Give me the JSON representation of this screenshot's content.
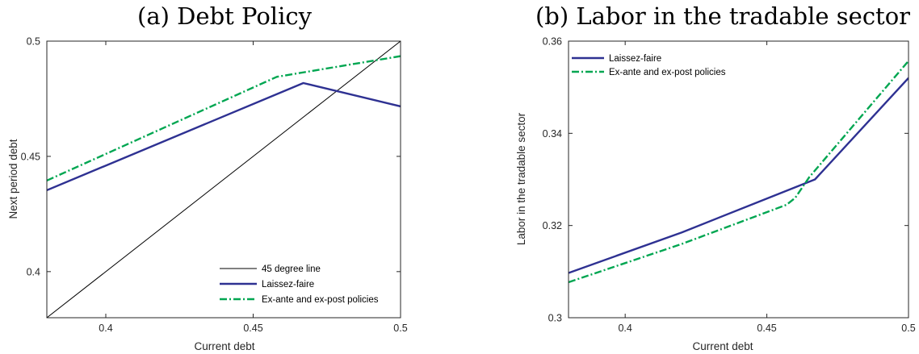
{
  "chart_data": [
    {
      "type": "line",
      "title": "(a) Debt Policy",
      "xlabel": "Current debt",
      "ylabel": "Next period debt",
      "xlim": [
        0.38,
        0.5
      ],
      "ylim": [
        0.38,
        0.5
      ],
      "xticks": [
        0.4,
        0.45,
        0.5
      ],
      "yticks": [
        0.4,
        0.45,
        0.5
      ],
      "xtick_labels": [
        "0.4",
        "0.45",
        "0.5"
      ],
      "ytick_labels": [
        "0.4",
        "0.45",
        "0.5"
      ],
      "legend_position": "bottom-right",
      "series": [
        {
          "name": "45 degree line",
          "color": "#000000",
          "style": "solid",
          "x": [
            0.38,
            0.5
          ],
          "y": [
            0.38,
            0.5
          ]
        },
        {
          "name": "Laissez-faire",
          "color": "#2e3192",
          "style": "solid",
          "x": [
            0.38,
            0.467,
            0.5
          ],
          "y": [
            0.4353,
            0.4818,
            0.4717
          ]
        },
        {
          "name": "Ex-ante and ex-post policies",
          "color": "#00a651",
          "style": "dashdot",
          "x": [
            0.38,
            0.458,
            0.5
          ],
          "y": [
            0.4395,
            0.4845,
            0.4935
          ]
        }
      ]
    },
    {
      "type": "line",
      "title": "(b) Labor in the tradable sector",
      "xlabel": "Current debt",
      "ylabel": "Labor in the tradable sector",
      "xlim": [
        0.38,
        0.5
      ],
      "ylim": [
        0.3,
        0.36
      ],
      "xticks": [
        0.4,
        0.45,
        0.5
      ],
      "yticks": [
        0.3,
        0.32,
        0.34,
        0.36
      ],
      "xtick_labels": [
        "0.4",
        "0.45",
        "0.5"
      ],
      "ytick_labels": [
        "0.3",
        "0.32",
        "0.34",
        "0.36"
      ],
      "legend_position": "top-left",
      "series": [
        {
          "name": "Laissez-faire",
          "color": "#2e3192",
          "style": "solid",
          "x": [
            0.38,
            0.42,
            0.467,
            0.5
          ],
          "y": [
            0.3097,
            0.3185,
            0.33,
            0.352
          ]
        },
        {
          "name": "Ex-ante and ex-post policies",
          "color": "#00a651",
          "style": "dashdot",
          "x": [
            0.38,
            0.42,
            0.457,
            0.46,
            0.465,
            0.5
          ],
          "y": [
            0.3077,
            0.316,
            0.3245,
            0.326,
            0.3305,
            0.3557
          ]
        }
      ]
    }
  ]
}
